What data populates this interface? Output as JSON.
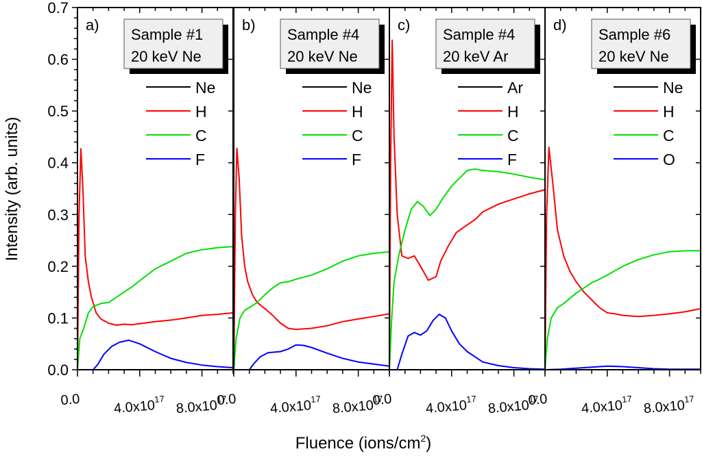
{
  "chart_data": {
    "type": "line",
    "ylabel": "Intensity (arb. units)",
    "xlabel": "Fluence (ions/cm",
    "xlabel_sup": "2",
    "xlabel_tail": ")",
    "ylim": [
      0,
      0.7
    ],
    "xlim": [
      0,
      1e+18
    ],
    "x_unit": "1e17",
    "yticks": [
      "0.0",
      "0.1",
      "0.2",
      "0.3",
      "0.4",
      "0.5",
      "0.6",
      "0.7"
    ],
    "xticks": [
      {
        "mantissa": "0.0",
        "exp": ""
      },
      {
        "mantissa": "4.0x10",
        "exp": "17"
      },
      {
        "mantissa": "8.0x10",
        "exp": "17"
      }
    ],
    "colors": {
      "Ne": "#000000",
      "Ar": "#000000",
      "H": "#ff0000",
      "C": "#00e000",
      "F": "#0000ff",
      "O": "#0000ff"
    },
    "panels": [
      {
        "label": "a)",
        "box": [
          "Sample #1",
          "20 keV Ne"
        ],
        "legend": [
          "Ne",
          "H",
          "C",
          "F"
        ],
        "series": [
          {
            "name": "Ne",
            "x": [],
            "y": []
          },
          {
            "name": "H",
            "x": [
              0,
              0.1,
              0.22,
              0.35,
              0.5,
              0.7,
              0.9,
              1.2,
              1.5,
              2.0,
              2.5,
              3.0,
              3.5,
              4.0,
              5.0,
              6.0,
              7.0,
              8.0,
              9.0,
              10.0
            ],
            "y": [
              0,
              0.3,
              0.427,
              0.35,
              0.22,
              0.17,
              0.14,
              0.11,
              0.098,
              0.09,
              0.086,
              0.088,
              0.087,
              0.089,
              0.093,
              0.096,
              0.1,
              0.105,
              0.107,
              0.11
            ]
          },
          {
            "name": "C",
            "x": [
              0,
              0.15,
              0.4,
              0.7,
              1.0,
              1.5,
              2.0,
              2.5,
              3.0,
              3.5,
              4.0,
              5.0,
              6.0,
              7.0,
              8.0,
              9.0,
              10.0
            ],
            "y": [
              0,
              0.06,
              0.08,
              0.11,
              0.122,
              0.128,
              0.13,
              0.14,
              0.15,
              0.16,
              0.172,
              0.195,
              0.21,
              0.225,
              0.232,
              0.236,
              0.238
            ]
          },
          {
            "name": "F",
            "x": [
              0,
              1.0,
              1.3,
              1.7,
              2.2,
              2.7,
              3.3,
              4.0,
              5.0,
              6.0,
              7.0,
              8.0,
              9.0,
              10.0
            ],
            "y": [
              0,
              0,
              0.01,
              0.03,
              0.045,
              0.053,
              0.057,
              0.05,
              0.035,
              0.022,
              0.014,
              0.009,
              0.006,
              0.004
            ]
          }
        ]
      },
      {
        "label": "b)",
        "box": [
          "Sample #4",
          "20 keV Ne"
        ],
        "legend": [
          "Ne",
          "H",
          "C",
          "F"
        ],
        "series": [
          {
            "name": "Ne",
            "x": [],
            "y": []
          },
          {
            "name": "H",
            "x": [
              0,
              0.1,
              0.2,
              0.35,
              0.5,
              0.7,
              0.9,
              1.2,
              1.5,
              2.0,
              2.5,
              3.0,
              3.5,
              4.0,
              5.0,
              6.0,
              7.0,
              8.0,
              9.0,
              10.0
            ],
            "y": [
              0,
              0.3,
              0.428,
              0.37,
              0.26,
              0.2,
              0.17,
              0.145,
              0.13,
              0.118,
              0.105,
              0.09,
              0.08,
              0.078,
              0.08,
              0.085,
              0.093,
              0.098,
              0.103,
              0.108
            ]
          },
          {
            "name": "C",
            "x": [
              0,
              0.15,
              0.4,
              0.7,
              1.0,
              1.5,
              2.0,
              2.5,
              3.0,
              3.5,
              4.0,
              5.0,
              6.0,
              7.0,
              8.0,
              9.0,
              10.0
            ],
            "y": [
              0,
              0.06,
              0.1,
              0.115,
              0.12,
              0.13,
              0.145,
              0.158,
              0.168,
              0.17,
              0.175,
              0.183,
              0.195,
              0.21,
              0.22,
              0.225,
              0.228
            ]
          },
          {
            "name": "F",
            "x": [
              0,
              1.0,
              1.3,
              1.7,
              2.2,
              3.0,
              3.5,
              4.0,
              4.5,
              5.0,
              6.0,
              7.0,
              8.0,
              9.0,
              10.0
            ],
            "y": [
              0,
              0,
              0.012,
              0.025,
              0.033,
              0.035,
              0.04,
              0.048,
              0.047,
              0.043,
              0.032,
              0.022,
              0.015,
              0.011,
              0.007
            ]
          }
        ]
      },
      {
        "label": "c)",
        "box": [
          "Sample #4",
          "20 keV Ar"
        ],
        "legend": [
          "Ar",
          "H",
          "C",
          "F"
        ],
        "series": [
          {
            "name": "Ar",
            "x": [],
            "y": []
          },
          {
            "name": "H",
            "x": [
              0,
              0.08,
              0.18,
              0.3,
              0.5,
              0.8,
              1.2,
              1.6,
              2.0,
              2.5,
              3.0,
              3.3,
              3.8,
              4.3,
              5.0,
              5.5,
              6.0,
              7.0,
              8.0,
              9.0,
              10.0
            ],
            "y": [
              0,
              0.4,
              0.637,
              0.45,
              0.3,
              0.22,
              0.215,
              0.22,
              0.2,
              0.173,
              0.18,
              0.21,
              0.24,
              0.265,
              0.28,
              0.29,
              0.305,
              0.32,
              0.33,
              0.34,
              0.348
            ]
          },
          {
            "name": "C",
            "x": [
              0,
              0.15,
              0.3,
              0.6,
              1.0,
              1.4,
              1.8,
              2.2,
              2.6,
              3.0,
              3.4,
              4.0,
              4.5,
              5.0,
              5.5,
              6.0,
              7.0,
              8.0,
              9.0,
              10.0
            ],
            "y": [
              0,
              0.1,
              0.17,
              0.22,
              0.27,
              0.31,
              0.325,
              0.315,
              0.298,
              0.31,
              0.33,
              0.355,
              0.37,
              0.385,
              0.388,
              0.385,
              0.383,
              0.378,
              0.372,
              0.367
            ]
          },
          {
            "name": "F",
            "x": [
              0,
              0.5,
              0.8,
              1.2,
              1.6,
              2.0,
              2.4,
              2.8,
              3.2,
              3.6,
              4.0,
              4.5,
              5.0,
              6.0,
              7.0,
              8.0,
              9.0,
              10.0
            ],
            "y": [
              0,
              0,
              0.03,
              0.065,
              0.072,
              0.067,
              0.075,
              0.095,
              0.107,
              0.1,
              0.075,
              0.05,
              0.035,
              0.015,
              0.008,
              0.004,
              0.002,
              0.001
            ]
          }
        ]
      },
      {
        "label": "d)",
        "box": [
          "Sample #6",
          "20 keV Ne"
        ],
        "legend": [
          "Ne",
          "H",
          "C",
          "O"
        ],
        "series": [
          {
            "name": "Ne",
            "x": [],
            "y": []
          },
          {
            "name": "H",
            "x": [
              0,
              0.1,
              0.25,
              0.5,
              0.8,
              1.2,
              1.6,
              2.0,
              2.5,
              3.0,
              3.5,
              4.0,
              4.5,
              5.0,
              6.0,
              7.0,
              8.0,
              9.0,
              10.0
            ],
            "y": [
              0,
              0.3,
              0.43,
              0.36,
              0.27,
              0.22,
              0.19,
              0.17,
              0.15,
              0.135,
              0.12,
              0.11,
              0.108,
              0.105,
              0.103,
              0.105,
              0.108,
              0.112,
              0.118
            ]
          },
          {
            "name": "C",
            "x": [
              0,
              0.15,
              0.4,
              0.8,
              1.2,
              1.6,
              2.0,
              2.5,
              3.0,
              3.5,
              4.0,
              5.0,
              6.0,
              7.0,
              8.0,
              9.0,
              10.0
            ],
            "y": [
              0,
              0.06,
              0.1,
              0.12,
              0.128,
              0.138,
              0.148,
              0.158,
              0.168,
              0.175,
              0.183,
              0.2,
              0.213,
              0.222,
              0.228,
              0.23,
              0.23
            ]
          },
          {
            "name": "O",
            "x": [
              0,
              1.0,
              2.0,
              3.0,
              4.0,
              5.0,
              6.0,
              7.0,
              8.0,
              9.0,
              10.0
            ],
            "y": [
              0,
              0.001,
              0.003,
              0.005,
              0.007,
              0.006,
              0.004,
              0.002,
              0.001,
              0.001,
              0.001
            ]
          }
        ]
      }
    ]
  }
}
